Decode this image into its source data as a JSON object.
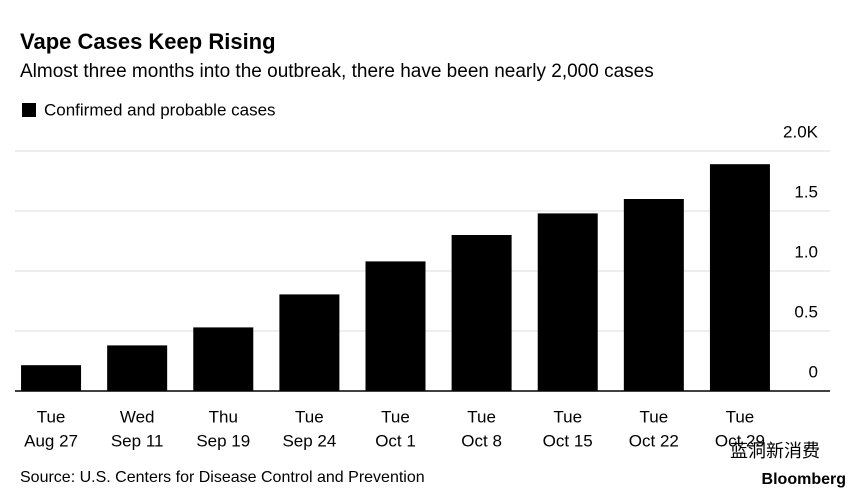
{
  "chart_data": {
    "type": "bar",
    "title": "Vape Cases Keep Rising",
    "subtitle": "Almost three months into the outbreak, there have been nearly 2,000 cases",
    "legend": "Confirmed and probable cases",
    "categories": [
      [
        "Tue",
        "Aug 27"
      ],
      [
        "Wed",
        "Sep 11"
      ],
      [
        "Thu",
        "Sep 19"
      ],
      [
        "Tue",
        "Sep 24"
      ],
      [
        "Tue",
        "Oct 1"
      ],
      [
        "Tue",
        "Oct 8"
      ],
      [
        "Tue",
        "Oct 15"
      ],
      [
        "Tue",
        "Oct 22"
      ],
      [
        "Tue",
        "Oct 29"
      ]
    ],
    "values": [
      0.215,
      0.38,
      0.53,
      0.805,
      1.08,
      1.3,
      1.48,
      1.6,
      1.89
    ],
    "color": "#000000",
    "ylim": [
      0,
      2
    ],
    "yticks": [
      0,
      0.5,
      {
        "value": 1,
        "label": "1.0"
      },
      1.5,
      {
        "value": 2,
        "label": "2.0K"
      }
    ],
    "grid": true,
    "source": "Source: U.S. Centers for Disease Control and Prevention",
    "brand": "Bloomberg",
    "watermark": "蓝洞新消费"
  }
}
